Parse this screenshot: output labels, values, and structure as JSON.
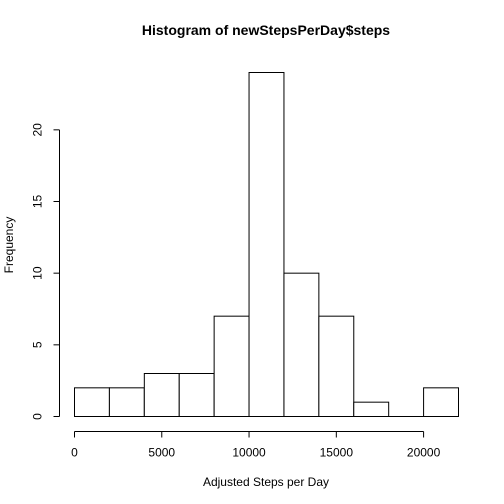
{
  "chart_data": {
    "type": "bar",
    "title": "Histogram of newStepsPerDay$steps",
    "xlabel": "Adjusted Steps per Day",
    "ylabel": "Frequency",
    "bin_edges": [
      0,
      2000,
      4000,
      6000,
      8000,
      10000,
      12000,
      14000,
      16000,
      18000,
      20000,
      22000
    ],
    "values": [
      2,
      2,
      3,
      3,
      7,
      24,
      10,
      7,
      1,
      0,
      2
    ],
    "xlim": [
      0,
      22000
    ],
    "ylim": [
      0,
      24
    ],
    "x_ticks": [
      0,
      5000,
      10000,
      15000,
      20000
    ],
    "x_tick_labels": [
      "0",
      "5000",
      "10000",
      "15000",
      "20000"
    ],
    "y_ticks": [
      0,
      5,
      10,
      15,
      20
    ],
    "y_tick_labels": [
      "0",
      "5",
      "10",
      "15",
      "20"
    ],
    "grid": false,
    "legend": "none",
    "bar_fill": "#ffffff",
    "bar_stroke": "#000000"
  }
}
